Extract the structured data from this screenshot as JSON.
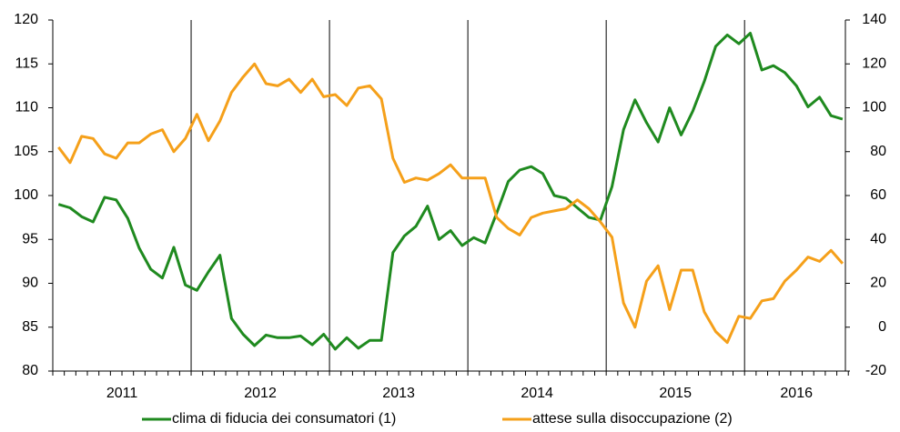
{
  "chart_data": {
    "type": "line",
    "years": [
      "2011",
      "2012",
      "2013",
      "2014",
      "2015",
      "2016"
    ],
    "series": [
      {
        "name": "clima di fiducia dei consumatori (1)",
        "color": "#1f8a1f",
        "axis": "y",
        "values": [
          99.0,
          98.6,
          97.6,
          97.0,
          99.8,
          99.5,
          97.4,
          94.0,
          91.6,
          90.6,
          94.1,
          89.8,
          89.2,
          91.3,
          93.2,
          86.0,
          84.2,
          82.9,
          84.1,
          83.8,
          83.8,
          84.0,
          83.0,
          84.2,
          82.5,
          83.8,
          82.6,
          83.5,
          83.5,
          93.5,
          95.4,
          96.5,
          98.8,
          95.0,
          96.0,
          94.3,
          95.2,
          94.6,
          98.0,
          101.6,
          102.9,
          103.3,
          102.5,
          100.0,
          99.7,
          98.6,
          97.5,
          97.2,
          101.0,
          107.5,
          110.9,
          108.3,
          106.1,
          110.0,
          106.9,
          109.6,
          113.0,
          117.0,
          118.3,
          117.3,
          118.5,
          114.3,
          114.8,
          114.0,
          112.5,
          110.1,
          111.2,
          109.1,
          108.7
        ]
      },
      {
        "name": "attese sulla disoccupazione (2)",
        "color": "#f5a01a",
        "axis": "y2",
        "values": [
          82,
          75,
          87,
          86,
          79,
          77,
          84,
          84,
          88,
          90,
          80,
          86,
          97,
          85,
          94,
          107,
          114,
          120,
          111,
          110,
          113,
          107,
          113,
          105,
          106,
          101,
          109,
          110,
          104,
          77,
          66,
          68,
          67,
          70,
          74,
          68,
          68,
          68,
          50,
          45,
          42,
          50,
          52,
          53,
          54,
          58,
          54,
          48,
          41,
          11,
          0,
          21,
          28,
          8,
          26,
          26,
          7,
          -2,
          -7,
          5,
          4,
          12,
          13,
          21,
          26,
          32,
          30,
          35,
          29
        ]
      }
    ],
    "ylim": [
      80,
      120
    ],
    "yticks": [
      80,
      85,
      90,
      95,
      100,
      105,
      110,
      115,
      120
    ],
    "y2lim": [
      -20,
      140
    ],
    "y2ticks": [
      -20,
      0,
      20,
      40,
      60,
      80,
      100,
      120,
      140
    ]
  }
}
